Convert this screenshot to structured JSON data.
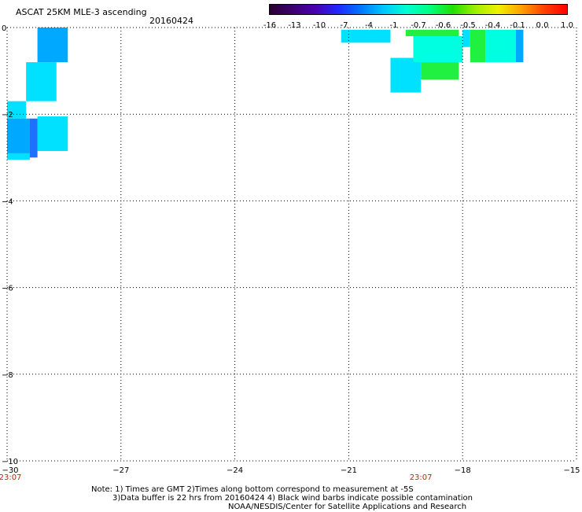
{
  "header": {
    "title": "ASCAT 25KM MLE-3 ascending",
    "date": "20160424"
  },
  "colorbar": {
    "ticks": [
      "-16",
      "-13",
      "-10",
      "-7",
      "-4",
      "-1",
      "-0.7",
      "-0.6",
      "-0.5",
      "-0.4",
      "-0.1",
      "0.0",
      "1.0"
    ],
    "colors": [
      "#2a0030",
      "#3c0070",
      "#4a00b0",
      "#1e28ff",
      "#0078ff",
      "#00c8ff",
      "#00ffd0",
      "#00ff80",
      "#20e000",
      "#a0f000",
      "#f0f000",
      "#ffa000",
      "#ff4000",
      "#ff0000"
    ]
  },
  "notes": {
    "line1": "Note: 1) Times are GMT 2)Times along bottom correspond to measurement at -5S",
    "line2": "3)Data buffer is 22 hrs from 20160424 4) Black wind barbs indicate possible contamination",
    "line3": "NOAA/NESDIS/Center for Satellite Applications and Research"
  },
  "chart_data": {
    "type": "heatmap",
    "title": "ASCAT 25KM MLE-3 ascending",
    "subtitle": "20160424",
    "xlim": [
      -30,
      -15
    ],
    "ylim": [
      -10,
      0
    ],
    "xticks": [
      -30,
      -27,
      -24,
      -21,
      -18,
      -15
    ],
    "yticks": [
      0,
      -2,
      -4,
      -6,
      -8,
      -10
    ],
    "grid": true,
    "time_labels": [
      {
        "x": -30,
        "text": "23:07"
      },
      {
        "x": -19.1,
        "text": "23:07"
      }
    ],
    "cells": [
      {
        "x0": -29.2,
        "x1": -28.4,
        "y0": 0,
        "y1": -0.8,
        "value": -4
      },
      {
        "x0": -29.5,
        "x1": -28.7,
        "y0": -0.8,
        "y1": -1.7,
        "value": -1
      },
      {
        "x0": -30,
        "x1": -29.5,
        "y0": -1.7,
        "y1": -2.1,
        "value": -1
      },
      {
        "x0": -29.2,
        "x1": -28.4,
        "y0": -2.05,
        "y1": -2.85,
        "value": -1
      },
      {
        "x0": -30,
        "x1": -29.4,
        "y0": -2.1,
        "y1": -3.0,
        "value": -4
      },
      {
        "x0": -29.4,
        "x1": -29.2,
        "y0": -2.1,
        "y1": -3.0,
        "value": -7
      },
      {
        "x0": -30,
        "x1": -29.4,
        "y0": -2.9,
        "y1": -3.05,
        "value": -1
      },
      {
        "x0": -21.2,
        "x1": -19.9,
        "y0": -0.05,
        "y1": -0.35,
        "value": -1
      },
      {
        "x0": -19.9,
        "x1": -19.1,
        "y0": -0.7,
        "y1": -1.5,
        "value": -1
      },
      {
        "x0": -19.5,
        "x1": -18.1,
        "y0": -0.05,
        "y1": -0.2,
        "value": -0.5
      },
      {
        "x0": -19.3,
        "x1": -18.0,
        "y0": -0.2,
        "y1": -0.8,
        "value": -0.7
      },
      {
        "x0": -19.1,
        "x1": -18.1,
        "y0": -0.8,
        "y1": -1.2,
        "value": -0.5
      },
      {
        "x0": -18.0,
        "x1": -17.8,
        "y0": -0.05,
        "y1": -0.45,
        "value": -1
      },
      {
        "x0": -17.8,
        "x1": -17.4,
        "y0": -0.05,
        "y1": -0.8,
        "value": -0.5
      },
      {
        "x0": -17.4,
        "x1": -16.6,
        "y0": -0.05,
        "y1": -0.8,
        "value": -0.7
      },
      {
        "x0": -16.6,
        "x1": -16.4,
        "y0": -0.05,
        "y1": -0.8,
        "value": -4
      }
    ]
  }
}
